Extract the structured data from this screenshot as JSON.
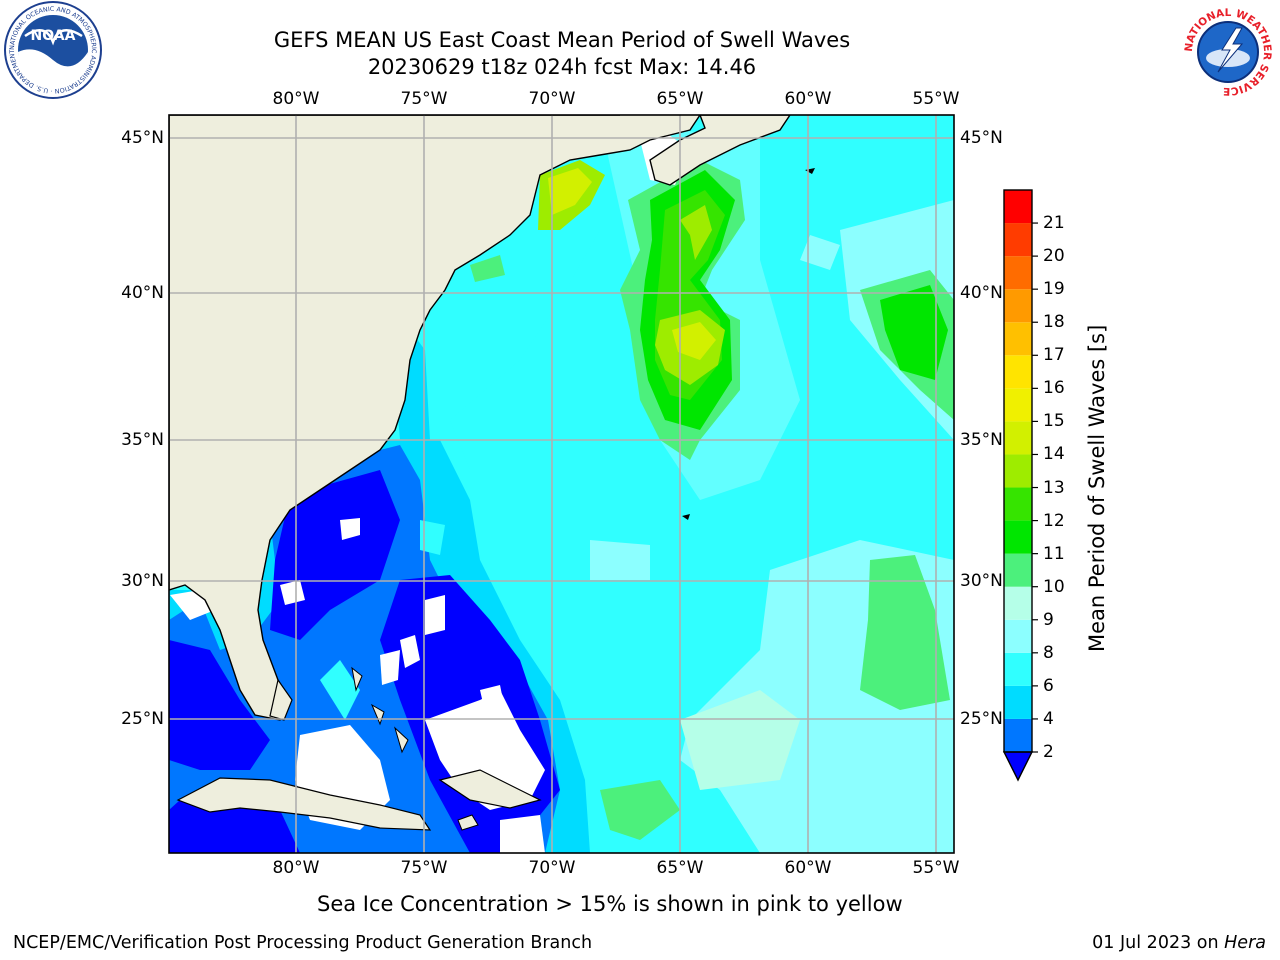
{
  "header": {
    "title_line1": "GEFS MEAN US East Coast Mean Period of Swell Waves",
    "title_line2": "20230629 t18z 024h fcst   Max: 14.46"
  },
  "logos": {
    "noaa_text": "NOAA",
    "noaa_ring_text": "NATIONAL OCEANIC AND ATMOSPHERIC ADMINISTRATION · U.S. DEPARTMENT OF COMMERCE",
    "nws_ring_text": "NATIONAL WEATHER SERVICE"
  },
  "map": {
    "lon_labels": [
      "80°W",
      "75°W",
      "70°W",
      "65°W",
      "60°W",
      "55°W"
    ],
    "lat_labels": [
      "45°N",
      "40°N",
      "35°N",
      "30°N",
      "25°N"
    ],
    "colors": {
      "land": "#eeeedd",
      "missing": "#ffffff",
      "grid": "#b0b0b0"
    }
  },
  "colorbar": {
    "title": "Mean Period of Swell Waves [s]",
    "ticks": [
      "2",
      "4",
      "6",
      "8",
      "9",
      "10",
      "11",
      "12",
      "13",
      "14",
      "15",
      "16",
      "17",
      "18",
      "19",
      "20",
      "21"
    ],
    "colors": [
      "#0077ff",
      "#00dcff",
      "#30ffff",
      "#8cffff",
      "#b5ffe8",
      "#4cf07c",
      "#00e600",
      "#36e400",
      "#9eec00",
      "#d2f000",
      "#f0f000",
      "#ffe400",
      "#ffc000",
      "#ff9a00",
      "#ff6c00",
      "#ff3c00",
      "#ff0000"
    ],
    "under_color": "#0000ff"
  },
  "note": "Sea Ice Concentration > 15% is shown in pink to yellow",
  "footer": {
    "left": "NCEP/EMC/Verification Post Processing Product Generation Branch",
    "date": "01 Jul 2023 on ",
    "host": "Hera"
  }
}
